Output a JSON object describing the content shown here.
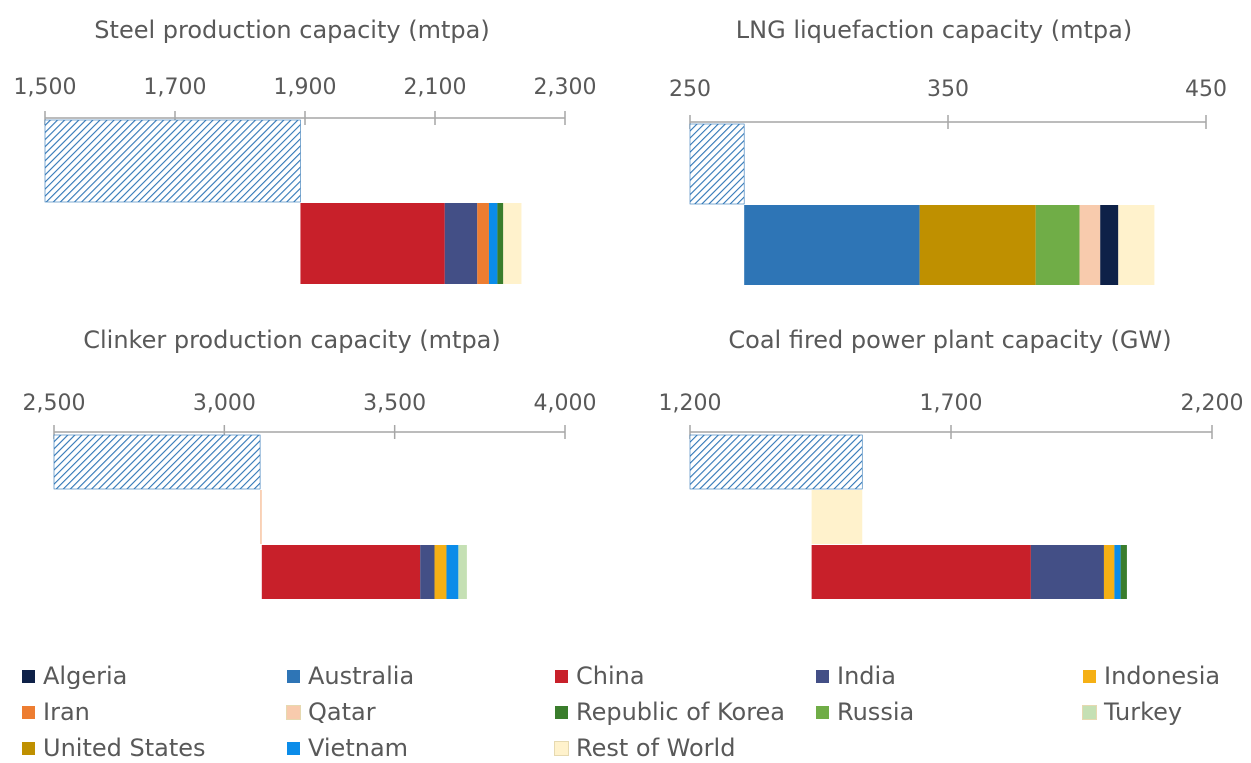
{
  "colors": {
    "Algeria": "#0e2148",
    "Australia": "#2e75b6",
    "China": "#c8202a",
    "India": "#434f86",
    "Indonesia": "#f5b015",
    "Iran": "#ed7d31",
    "Qatar": "#f8cbad",
    "Republic of Korea": "#3a7d2c",
    "Russia": "#70ad47",
    "Turkey": "#c5e0b4",
    "United States": "#bf9000",
    "Vietnam": "#0b8ce9",
    "Rest of World": "#fff2cc",
    "hatch": "#2e75b6"
  },
  "legend": {
    "items": [
      "Algeria",
      "Australia",
      "China",
      "India",
      "Indonesia",
      "Iran",
      "Qatar",
      "Republic of Korea",
      "Russia",
      "Turkey",
      "United States",
      "Vietnam",
      "Rest of World"
    ]
  },
  "chart_data": [
    {
      "type": "bar",
      "title": "Steel production capacity (mtpa)",
      "axis": {
        "min": 1500,
        "max": 2300,
        "ticks": [
          1500,
          1700,
          1900,
          2100,
          2300
        ],
        "tick_labels": [
          "1,500",
          "1,700",
          "1,900",
          "2,100",
          "2,300"
        ]
      },
      "baseline": {
        "start": 1500,
        "end": 1893
      },
      "segments_rows": [
        [
          {
            "name": "China",
            "value": 222
          },
          {
            "name": "India",
            "value": 50
          },
          {
            "name": "Iran",
            "value": 18
          },
          {
            "name": "Vietnam",
            "value": 13
          },
          {
            "name": "Republic of Korea",
            "value": 9
          },
          {
            "name": "Rest of World",
            "value": 28
          }
        ]
      ]
    },
    {
      "type": "bar",
      "title": "LNG liquefaction capacity (mtpa)",
      "axis": {
        "min": 250,
        "max": 450,
        "ticks": [
          250,
          350,
          450
        ],
        "tick_labels": [
          "250",
          "350",
          "450"
        ]
      },
      "baseline": {
        "start": 250,
        "end": 271
      },
      "segments_rows": [
        [
          {
            "name": "Australia",
            "value": 68
          },
          {
            "name": "United States",
            "value": 45
          },
          {
            "name": "Russia",
            "value": 17
          },
          {
            "name": "Qatar",
            "value": 8
          },
          {
            "name": "Algeria",
            "value": 7
          },
          {
            "name": "Rest of World",
            "value": 14
          }
        ]
      ]
    },
    {
      "type": "bar",
      "title": "Clinker production capacity (mtpa)",
      "axis": {
        "min": 2500,
        "max": 4000,
        "ticks": [
          2500,
          3000,
          3500,
          4000
        ],
        "tick_labels": [
          "2,500",
          "3,000",
          "3,500",
          "4,000"
        ]
      },
      "baseline": {
        "start": 2500,
        "end": 3105
      },
      "segments_rows": [
        [
          {
            "name": "Qatar",
            "value": 5
          }
        ],
        [
          {
            "name": "China",
            "value": 465
          },
          {
            "name": "India",
            "value": 42
          },
          {
            "name": "Indonesia",
            "value": 35
          },
          {
            "name": "Vietnam",
            "value": 35
          },
          {
            "name": "Turkey",
            "value": 25
          }
        ]
      ]
    },
    {
      "type": "bar",
      "title": "Coal fired power plant capacity (GW)",
      "axis": {
        "min": 1200,
        "max": 2200,
        "ticks": [
          1200,
          1700,
          2200
        ],
        "tick_labels": [
          "1,200",
          "1,700",
          "2,200"
        ]
      },
      "baseline": {
        "start": 1200,
        "end": 1530
      },
      "segments_rows": [
        [
          {
            "name": "Rest of World",
            "value": -97
          }
        ],
        [
          {
            "name": "China",
            "value": 420
          },
          {
            "name": "India",
            "value": 140
          },
          {
            "name": "Indonesia",
            "value": 20
          },
          {
            "name": "Vietnam",
            "value": 12
          },
          {
            "name": "Republic of Korea",
            "value": 12
          }
        ]
      ]
    }
  ]
}
